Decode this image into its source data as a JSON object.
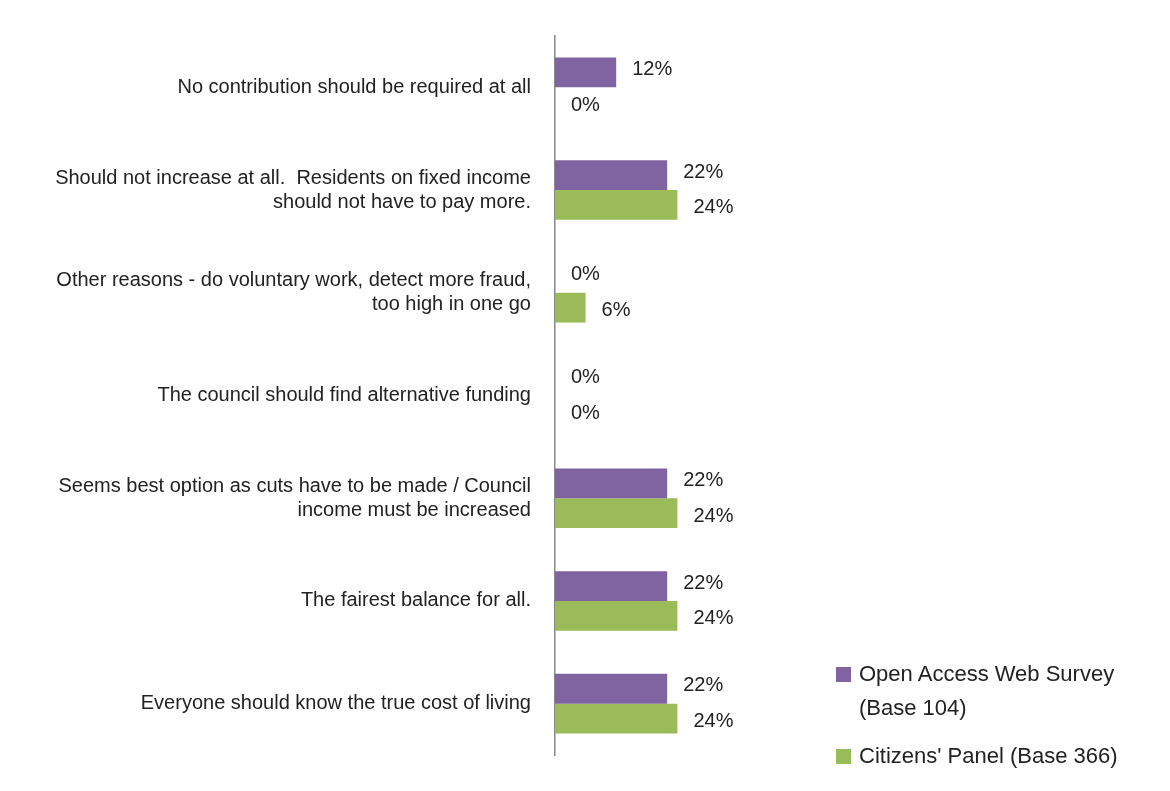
{
  "chart_data": {
    "type": "bar",
    "orientation": "horizontal",
    "categories": [
      "No contribution should be required at all",
      "Should not increase at all.  Residents on fixed income should not have to pay more.",
      "Other reasons - do voluntary work, detect more fraud, too high in one go",
      "The council should find alternative funding",
      "Seems best option as cuts have to be made / Council income must be increased",
      "The fairest balance for all.",
      "Everyone should know the true cost of living"
    ],
    "series": [
      {
        "name": "Open Access Web Survey (Base 104)",
        "color": "#8064a2",
        "values": [
          12,
          22,
          0,
          0,
          22,
          22,
          22
        ],
        "value_labels": [
          "12%",
          "22%",
          "0%",
          "0%",
          "22%",
          "22%",
          "22%"
        ]
      },
      {
        "name": "Citizens' Panel (Base 366)",
        "color": "#9bbb59",
        "values": [
          0,
          24,
          6,
          0,
          24,
          24,
          24
        ],
        "value_labels": [
          "0%",
          "24%",
          "6%",
          "0%",
          "24%",
          "24%",
          "24%"
        ]
      }
    ],
    "grid": false,
    "legend": "bottom right",
    "tick_labels": "y"
  }
}
